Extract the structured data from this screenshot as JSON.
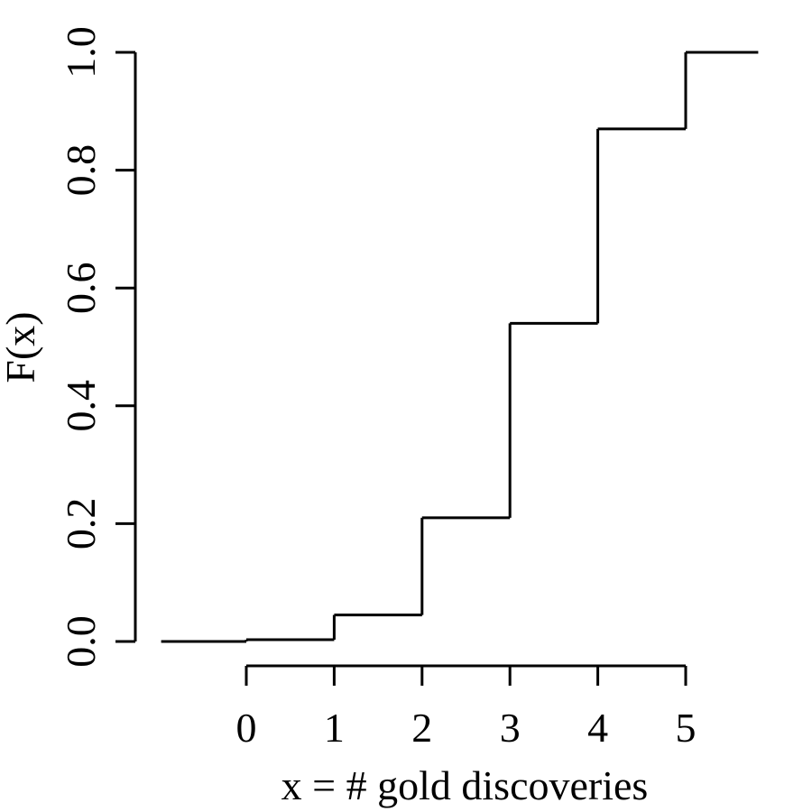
{
  "chart_data": {
    "type": "line",
    "style": "step",
    "title": "",
    "xlabel": "x = # gold discoveries",
    "ylabel": "F(x)",
    "xlim": [
      -1,
      6
    ],
    "ylim": [
      0,
      1
    ],
    "x_ticks": [
      0,
      1,
      2,
      3,
      4,
      5
    ],
    "x_tick_labels": [
      "0",
      "1",
      "2",
      "3",
      "4",
      "5"
    ],
    "y_ticks": [
      0.0,
      0.2,
      0.4,
      0.6,
      0.8,
      1.0
    ],
    "y_tick_labels": [
      "0.0",
      "0.2",
      "0.4",
      "0.6",
      "0.8",
      "1.0"
    ],
    "grid": false,
    "series": [
      {
        "x": [
          -1,
          0,
          1,
          2,
          3,
          4,
          5,
          6
        ],
        "y": [
          0.0,
          0.003,
          0.045,
          0.21,
          0.54,
          0.87,
          1.0,
          1.0
        ]
      }
    ]
  }
}
